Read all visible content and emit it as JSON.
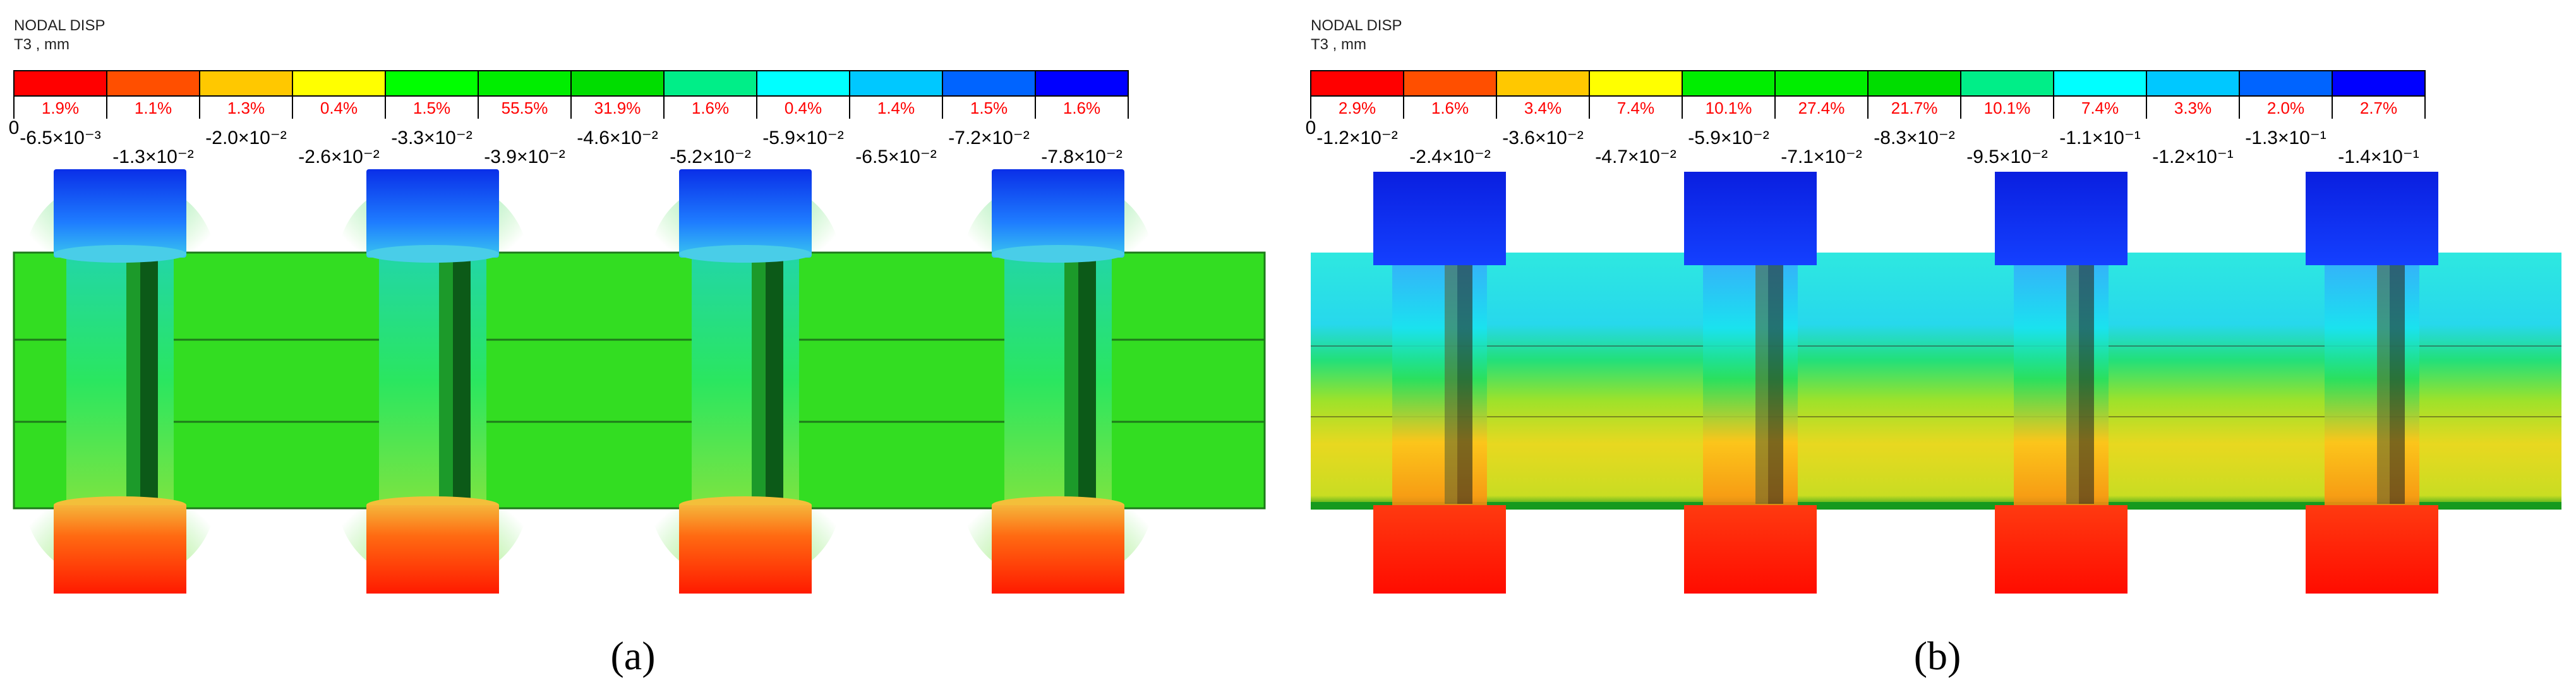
{
  "panels": [
    {
      "id": "a",
      "legend": {
        "title": "NODAL DISP",
        "subtitle": "T3 , mm",
        "colors": [
          "#ff0000",
          "#ff4f00",
          "#ffc800",
          "#ffff00",
          "#00ff00",
          "#00ee00",
          "#00dd00",
          "#00ee88",
          "#00ffff",
          "#00c8ff",
          "#0064ff",
          "#0000ff"
        ],
        "percents": [
          "1.9%",
          "1.1%",
          "1.3%",
          "0.4%",
          "1.5%",
          "55.5%",
          "31.9%",
          "1.6%",
          "0.4%",
          "1.4%",
          "1.5%",
          "1.6%"
        ],
        "tick_labels": [
          "0",
          "-6.5×10⁻³",
          "-1.3×10⁻²",
          "-2.0×10⁻²",
          "-2.6×10⁻²",
          "-3.3×10⁻²",
          "-3.9×10⁻²",
          "-4.6×10⁻²",
          "-5.2×10⁻²",
          "-5.9×10⁻²",
          "-6.5×10⁻²",
          "-7.2×10⁻²",
          "-7.8×10⁻²"
        ]
      },
      "plate_color": "#33dd22",
      "caption": "(a)"
    },
    {
      "id": "b",
      "legend": {
        "title": "NODAL DISP",
        "subtitle": "T3 , mm",
        "colors": [
          "#ff0000",
          "#ff4f00",
          "#ffc800",
          "#ffff00",
          "#00ee00",
          "#00ee00",
          "#00dd00",
          "#00ee88",
          "#00ffff",
          "#00c8ff",
          "#0064ff",
          "#0000ff"
        ],
        "percents": [
          "2.9%",
          "1.6%",
          "3.4%",
          "7.4%",
          "10.1%",
          "27.4%",
          "21.7%",
          "10.1%",
          "7.4%",
          "3.3%",
          "2.0%",
          "2.7%"
        ],
        "tick_labels": [
          "0",
          "-1.2×10⁻²",
          "-2.4×10⁻²",
          "-3.6×10⁻²",
          "-4.7×10⁻²",
          "-5.9×10⁻²",
          "-7.1×10⁻²",
          "-8.3×10⁻²",
          "-9.5×10⁻²",
          "-1.1×10⁻¹",
          "-1.2×10⁻¹",
          "-1.3×10⁻¹",
          "-1.4×10⁻¹"
        ]
      },
      "caption": "(b)"
    }
  ]
}
